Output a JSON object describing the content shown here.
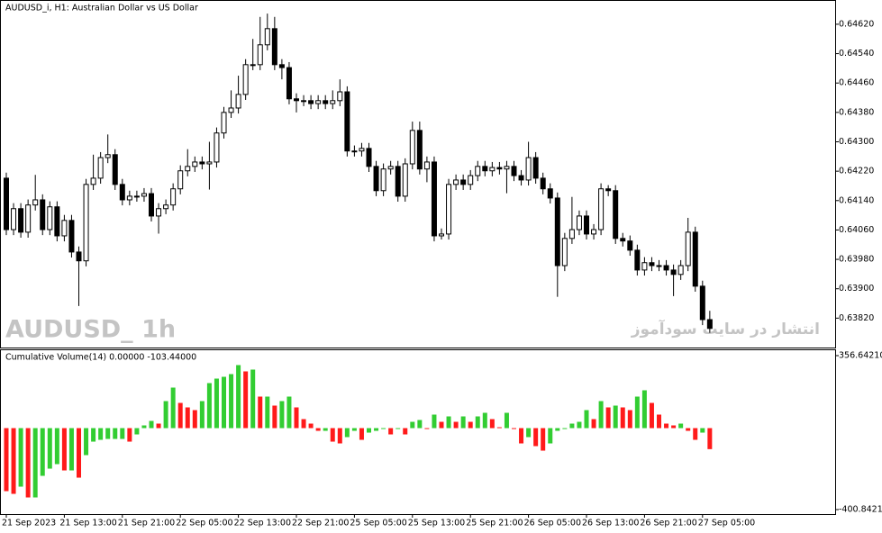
{
  "chart_data": [
    {
      "type": "candlestick",
      "title": "AUDUSD_i, H1:  Australian Dollar vs US Dollar",
      "watermark": "AUDUSD_ 1h",
      "watermark_2": "انتشار در سایت سودآموز",
      "categories": [
        "21 Sep 2023",
        null,
        null,
        null,
        null,
        null,
        null,
        null,
        "21 Sep 13:00",
        null,
        null,
        null,
        null,
        null,
        null,
        null,
        "21 Sep 21:00",
        null,
        null,
        null,
        null,
        null,
        null,
        null,
        "22 Sep 05:00",
        null,
        null,
        null,
        null,
        null,
        null,
        null,
        "22 Sep 13:00",
        null,
        null,
        null,
        null,
        null,
        null,
        null,
        "22 Sep 21:00",
        null,
        null,
        null,
        null,
        null,
        null,
        null,
        "25 Sep 05:00",
        null,
        null,
        null,
        null,
        null,
        null,
        null,
        "25 Sep 13:00",
        null,
        null,
        null,
        null,
        null,
        null,
        null,
        "25 Sep 21:00",
        null,
        null,
        null,
        null,
        null,
        null,
        null,
        "26 Sep 05:00",
        null,
        null,
        null,
        null,
        null,
        null,
        null,
        "26 Sep 13:00",
        null,
        null,
        null,
        null,
        null,
        null,
        null,
        "26 Sep 21:00",
        null,
        null,
        null,
        null,
        null,
        null,
        null,
        "27 Sep 05:00",
        null
      ],
      "open": [
        0.64201,
        0.64061,
        0.64118,
        0.64054,
        0.64128,
        0.64142,
        0.64061,
        0.64123,
        0.64044,
        0.64086,
        0.64,
        0.63976,
        0.64184,
        0.64201,
        0.64257,
        0.64265,
        0.64184,
        0.64142,
        0.64152,
        0.64152,
        0.64159,
        0.64098,
        0.64118,
        0.64128,
        0.64172,
        0.64221,
        0.64233,
        0.64245,
        0.6424,
        0.64245,
        0.64324,
        0.6438,
        0.64392,
        0.64429,
        0.6451,
        0.6451,
        0.64564,
        0.64608,
        0.6451,
        0.64502,
        0.64417,
        0.64412,
        0.64412,
        0.64404,
        0.64412,
        0.64404,
        0.64412,
        0.64436,
        0.64275,
        0.64275,
        0.64282,
        0.64233,
        0.64167,
        0.64226,
        0.64233,
        0.64152,
        0.6424,
        0.64331,
        0.64226,
        0.64245,
        0.64044,
        0.64049,
        0.64184,
        0.64196,
        0.64184,
        0.64208,
        0.64233,
        0.64221,
        0.6423,
        0.64226,
        0.64233,
        0.64208,
        0.64196,
        0.64257,
        0.64201,
        0.64172,
        0.64147,
        0.63963,
        0.64037,
        0.64061,
        0.64098,
        0.64049,
        0.64061,
        0.64172,
        0.64167,
        0.64037,
        0.6403,
        0.64005,
        0.63951,
        0.63971,
        0.63963,
        0.63963,
        0.63951,
        0.63939,
        0.63963,
        0.64054,
        0.63907,
        0.63816
      ],
      "high": [
        0.64216,
        0.64133,
        0.64133,
        0.64143,
        0.6421,
        0.64157,
        0.64138,
        0.64138,
        0.64101,
        0.64101,
        0.64015,
        0.64199,
        0.64265,
        0.64272,
        0.6432,
        0.6428,
        0.64199,
        0.64167,
        0.64167,
        0.64174,
        0.64174,
        0.64133,
        0.64143,
        0.64187,
        0.64236,
        0.6428,
        0.6426,
        0.6426,
        0.643,
        0.64339,
        0.64395,
        0.6444,
        0.6448,
        0.64525,
        0.6458,
        0.6464,
        0.64649,
        0.6464,
        0.64525,
        0.64517,
        0.64432,
        0.64427,
        0.64427,
        0.64427,
        0.64427,
        0.6444,
        0.6447,
        0.64451,
        0.6429,
        0.64297,
        0.64297,
        0.64248,
        0.64241,
        0.64248,
        0.64248,
        0.64255,
        0.64355,
        0.64355,
        0.6426,
        0.6426,
        0.64064,
        0.64199,
        0.64211,
        0.64211,
        0.64223,
        0.64248,
        0.64248,
        0.64245,
        0.64245,
        0.64248,
        0.64248,
        0.64223,
        0.643,
        0.64272,
        0.64216,
        0.64187,
        0.64162,
        0.64052,
        0.6415,
        0.64113,
        0.64113,
        0.64076,
        0.64187,
        0.64182,
        0.64182,
        0.64052,
        0.64045,
        0.6402,
        0.63986,
        0.63986,
        0.63978,
        0.63978,
        0.63966,
        0.63978,
        0.64093,
        0.64069,
        0.63922,
        0.6384
      ],
      "low": [
        0.64046,
        0.64046,
        0.64039,
        0.64039,
        0.64113,
        0.64046,
        0.64046,
        0.64029,
        0.64029,
        0.63985,
        0.63853,
        0.63961,
        0.64169,
        0.64186,
        0.64242,
        0.64169,
        0.64127,
        0.64127,
        0.64137,
        0.64137,
        0.64083,
        0.6405,
        0.64103,
        0.64113,
        0.64157,
        0.64206,
        0.64218,
        0.64225,
        0.6417,
        0.6423,
        0.64309,
        0.64365,
        0.64377,
        0.64414,
        0.64495,
        0.64495,
        0.64549,
        0.64495,
        0.6447,
        0.64402,
        0.6438,
        0.64397,
        0.64389,
        0.64389,
        0.64389,
        0.64389,
        0.64397,
        0.6426,
        0.6426,
        0.6426,
        0.64218,
        0.64152,
        0.64152,
        0.64211,
        0.64137,
        0.64137,
        0.64225,
        0.64211,
        0.6419,
        0.64029,
        0.64034,
        0.64034,
        0.64169,
        0.64169,
        0.64169,
        0.64193,
        0.64206,
        0.64206,
        0.64211,
        0.6416,
        0.64193,
        0.64181,
        0.64181,
        0.64186,
        0.64157,
        0.64132,
        0.63878,
        0.63948,
        0.64022,
        0.64046,
        0.64034,
        0.64034,
        0.64046,
        0.64152,
        0.64022,
        0.64015,
        0.6399,
        0.63936,
        0.63936,
        0.63948,
        0.63948,
        0.63936,
        0.6388,
        0.63924,
        0.63948,
        0.63892,
        0.63801,
        0.6378
      ],
      "close": [
        0.64061,
        0.64118,
        0.64054,
        0.64128,
        0.64142,
        0.64061,
        0.64123,
        0.64044,
        0.64086,
        0.64,
        0.63976,
        0.64184,
        0.64201,
        0.64257,
        0.64265,
        0.64184,
        0.64142,
        0.64152,
        0.64152,
        0.64159,
        0.64098,
        0.64118,
        0.64128,
        0.64172,
        0.64221,
        0.64233,
        0.64245,
        0.6424,
        0.64245,
        0.64324,
        0.6438,
        0.64392,
        0.64429,
        0.6451,
        0.6451,
        0.64564,
        0.64608,
        0.6451,
        0.64502,
        0.64417,
        0.64412,
        0.64412,
        0.64404,
        0.64412,
        0.64404,
        0.64412,
        0.64436,
        0.64275,
        0.64275,
        0.64282,
        0.64233,
        0.64167,
        0.64226,
        0.64233,
        0.64152,
        0.6424,
        0.64331,
        0.64226,
        0.64245,
        0.64044,
        0.64049,
        0.64184,
        0.64196,
        0.64184,
        0.64208,
        0.64233,
        0.64221,
        0.6423,
        0.64226,
        0.64233,
        0.64208,
        0.64196,
        0.64257,
        0.64201,
        0.64172,
        0.64147,
        0.63963,
        0.64037,
        0.64061,
        0.64098,
        0.64049,
        0.64061,
        0.64172,
        0.64167,
        0.64037,
        0.6403,
        0.64005,
        0.63951,
        0.63971,
        0.63963,
        0.63963,
        0.63951,
        0.63939,
        0.63963,
        0.64054,
        0.63907,
        0.63816,
        0.63792
      ],
      "up_color": "#ffffff",
      "down_color": "#000000",
      "ylim": [
        0.6374,
        0.64686
      ],
      "yticks": [
        {
          "value": 0.6462,
          "label": "0.64620"
        },
        {
          "value": 0.6454,
          "label": "0.64540"
        },
        {
          "value": 0.6446,
          "label": "0.64460"
        },
        {
          "value": 0.6438,
          "label": "0.64380"
        },
        {
          "value": 0.643,
          "label": "0.64300"
        },
        {
          "value": 0.6422,
          "label": "0.64220"
        },
        {
          "value": 0.6414,
          "label": "0.64140"
        },
        {
          "value": 0.6406,
          "label": "0.64060"
        },
        {
          "value": 0.6398,
          "label": "0.63980"
        },
        {
          "value": 0.639,
          "label": "0.63900"
        },
        {
          "value": 0.6382,
          "label": "0.63820"
        }
      ],
      "grid": false
    },
    {
      "type": "histogram",
      "title": "Cumulative Volume(14) 0.00000 -103.44000",
      "values": [
        -310.1,
        -323.4,
        -288,
        -341.1,
        -341.1,
        -234.8,
        -199.4,
        -177.2,
        -208.2,
        -208.2,
        -243.7,
        -132.9,
        -66.5,
        -57.6,
        -53.2,
        -53.2,
        -53.2,
        -66.5,
        -31,
        13.3,
        35.4,
        22.2,
        132.9,
        199.4,
        124,
        101.9,
        88.6,
        132.9,
        221.5,
        243.7,
        252.5,
        265.8,
        310.1,
        279.1,
        288,
        155.1,
        155.1,
        110.8,
        132.9,
        155.1,
        101.9,
        44.3,
        22.2,
        -13.3,
        -13.3,
        -66.5,
        -75.3,
        -44.3,
        -13.3,
        -57.6,
        -22.2,
        -13.3,
        -4.4,
        -31,
        -4.4,
        -31,
        31,
        39.9,
        -4.4,
        66.5,
        31,
        57.6,
        31,
        57.6,
        31,
        57.6,
        75.3,
        44.3,
        4.4,
        75.3,
        -4.4,
        -75.3,
        -44.3,
        -88.6,
        -110.8,
        -75.3,
        -13.3,
        -4.4,
        22.2,
        31,
        88.6,
        44.3,
        132.9,
        101.9,
        110.8,
        101.9,
        88.6,
        155.1,
        186.1,
        124,
        66.5,
        22.2,
        13.3,
        22.2,
        -13.3,
        -57.6,
        -22.2,
        -103.44
      ],
      "up_color": "#32cd32",
      "down_color": "#ff1a1a",
      "ylim": [
        -400.8421,
        356.6421
      ],
      "yticks": [
        {
          "value": 356.6421,
          "label": "356.64210"
        },
        {
          "value": -400.8421,
          "label": "-400.84210"
        }
      ]
    }
  ]
}
